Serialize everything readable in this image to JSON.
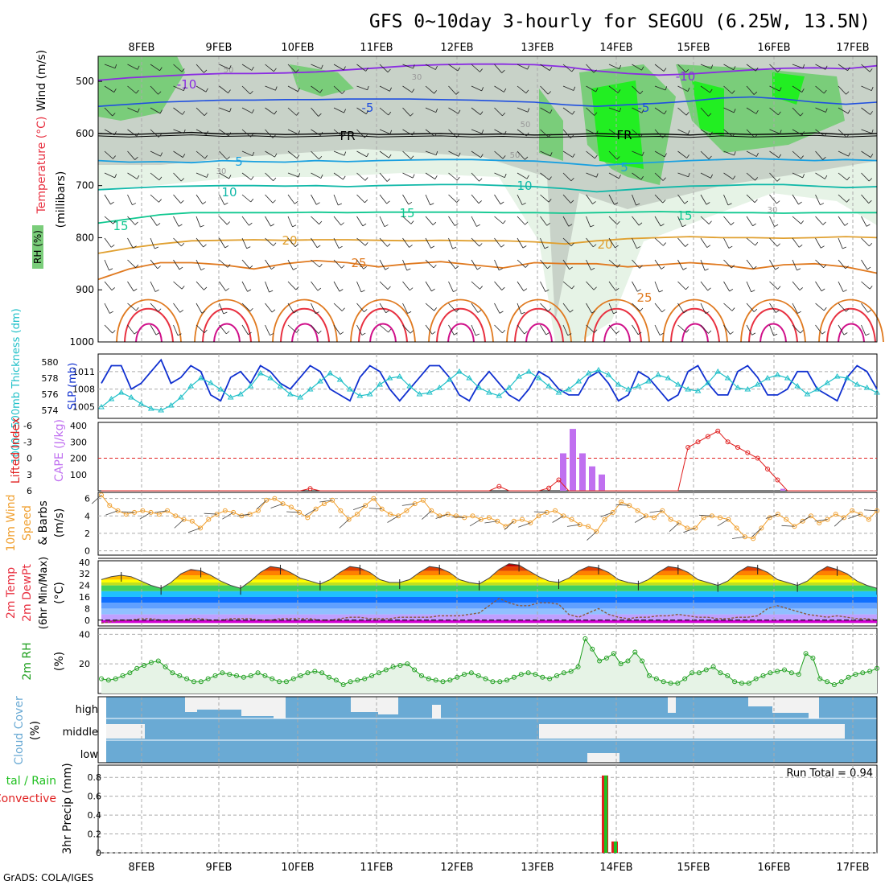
{
  "title": "GFS 0~10day 3-hourly for SEGOU (6.25W, 13.5N)",
  "credit": "GrADS: COLA/IGES",
  "colors": {
    "rh_light": "#e6f3e6",
    "rh_mid": "#c8d2c8",
    "rh_green": "#7acd7a",
    "rh_bright": "#22ee22",
    "temp_purple": "#8a2be2",
    "temp_blue": "#1f4fe0",
    "temp_cyan": "#1aa0e0",
    "temp_teal": "#10b8a8",
    "temp_green": "#10c890",
    "temp_orange": "#e0a030",
    "temp_orange2": "#e07a20",
    "temp_red": "#e83040",
    "temp_magenta": "#d0108a",
    "slp": "#1030d0",
    "thickness": "#20c0c8",
    "lifted": "#e02020",
    "cape": "#c070f0",
    "wind10": "#f0a030",
    "rh2m": "#20a020",
    "cloud": "#6aaad4",
    "rain": "#20c020",
    "convective": "#e02020"
  },
  "chart_data": [
    {
      "type": "heatmap",
      "panel": "upper-air",
      "x_ticks": [
        "8FEB",
        "9FEB",
        "10FEB",
        "11FEB",
        "12FEB",
        "13FEB",
        "14FEB",
        "15FEB",
        "16FEB",
        "17FEB"
      ],
      "ylabel": "(millibars)",
      "ylabels": [
        "Wind (m/s)",
        "Temperature (°C)",
        "RH (%)"
      ],
      "y_ticks": [
        500,
        600,
        700,
        800,
        900,
        1000
      ],
      "temperature_contours": [
        {
          "label": "-10",
          "level_mb": [
            498,
            493,
            490,
            487,
            485,
            485,
            484,
            482,
            478,
            474,
            470,
            468,
            467,
            467,
            468,
            472,
            480,
            485,
            488,
            486,
            482,
            478,
            475,
            474,
            476,
            470
          ]
        },
        {
          "label": "-5",
          "level_mb": [
            548,
            544,
            540,
            538,
            536,
            536,
            535,
            535,
            534,
            534,
            534,
            535,
            536,
            538,
            540,
            545,
            548,
            545,
            542,
            538,
            532,
            530,
            534,
            540,
            544,
            540
          ]
        },
        {
          "label": "FR",
          "level_mb": [
            600,
            602,
            600,
            598,
            601,
            600,
            602,
            601,
            599,
            602,
            601,
            600,
            602,
            601,
            603,
            602,
            600,
            602,
            601,
            603,
            600,
            602,
            601,
            599,
            602,
            600
          ]
        },
        {
          "label": "5",
          "level_mb": [
            652,
            655,
            654,
            656,
            652,
            654,
            655,
            652,
            654,
            652,
            651,
            650,
            650,
            652,
            653,
            657,
            662,
            658,
            655,
            652,
            650,
            648,
            650,
            652,
            650,
            652
          ]
        },
        {
          "label": "10",
          "level_mb": [
            708,
            705,
            702,
            701,
            700,
            700,
            701,
            700,
            702,
            700,
            699,
            698,
            698,
            700,
            702,
            706,
            712,
            708,
            704,
            701,
            700,
            698,
            698,
            701,
            704,
            702
          ]
        },
        {
          "label": "15",
          "level_mb": [
            772,
            764,
            756,
            752,
            752,
            752,
            752,
            751,
            752,
            751,
            751,
            751,
            751,
            752,
            752,
            753,
            752,
            751,
            750,
            751,
            752,
            752,
            753,
            752,
            752,
            752
          ]
        },
        {
          "label": "20",
          "level_mb": [
            830,
            820,
            812,
            806,
            805,
            804,
            805,
            804,
            804,
            805,
            806,
            805,
            806,
            806,
            808,
            812,
            806,
            802,
            800,
            798,
            800,
            800,
            801,
            800,
            798,
            800
          ]
        },
        {
          "label": "25",
          "level_mb": [
            880,
            860,
            848,
            848,
            852,
            860,
            850,
            844,
            848,
            856,
            850,
            846,
            852,
            858,
            848,
            850,
            850,
            856,
            852,
            848,
            852,
            860,
            852,
            850,
            856,
            868
          ]
        }
      ],
      "contour_labels": [
        "-10",
        "-10",
        "-5",
        "-5",
        "FR",
        "FR",
        "5",
        "5",
        "10",
        "10",
        "15",
        "15",
        "15",
        "20",
        "20",
        "25",
        "25",
        "-10",
        "30",
        "50",
        "50",
        "50",
        "30",
        "30"
      ]
    },
    {
      "type": "line",
      "panel": "slp-thickness",
      "ylabel_left": "1000~500mb Thickness (dm)",
      "ylabel_right": "SLP (mb)",
      "y_ticks_left": [
        574,
        576,
        578,
        580
      ],
      "y_ticks_right": [
        1005,
        1008,
        1011
      ],
      "series": [
        {
          "name": "SLP (mb)",
          "values": [
            1009,
            1012,
            1012,
            1008,
            1009,
            1011,
            1013,
            1009,
            1010,
            1012,
            1011,
            1007,
            1006,
            1010,
            1011,
            1009,
            1012,
            1011,
            1009,
            1008,
            1010,
            1012,
            1011,
            1008,
            1007,
            1006,
            1010,
            1012,
            1011,
            1008,
            1006,
            1008,
            1010,
            1012,
            1012,
            1010,
            1007,
            1006,
            1009,
            1011,
            1009,
            1007,
            1006,
            1008,
            1011,
            1010,
            1008,
            1007,
            1007,
            1010,
            1011,
            1009,
            1006,
            1007,
            1011,
            1010,
            1008,
            1006,
            1007,
            1011,
            1012,
            1009,
            1007,
            1007,
            1011,
            1012,
            1010,
            1007,
            1007,
            1008,
            1011,
            1011,
            1008,
            1007,
            1006,
            1010,
            1012,
            1011,
            1008
          ]
        },
        {
          "name": "1000~500mb Thickness (dm)",
          "values": [
            574.4,
            575.4,
            576.2,
            575.6,
            574.8,
            574.2,
            574.0,
            574.6,
            575.6,
            577.0,
            578.0,
            577.4,
            576.6,
            575.6,
            576.0,
            577.0,
            578.6,
            578.0,
            577.0,
            576.0,
            575.6,
            576.6,
            577.6,
            578.6,
            577.8,
            576.6,
            575.8,
            576.0,
            577.2,
            578.0,
            578.2,
            577.0,
            576.0,
            576.2,
            576.8,
            577.8,
            578.8,
            578.0,
            576.8,
            576.2,
            575.8,
            576.8,
            578.2,
            578.8,
            578.0,
            577.0,
            576.2,
            576.6,
            577.6,
            578.6,
            579.0,
            578.4,
            577.2,
            576.6,
            577.0,
            577.6,
            578.4,
            578.0,
            577.2,
            576.6,
            576.4,
            577.4,
            578.8,
            578.0,
            576.8,
            576.6,
            577.2,
            578.0,
            578.4,
            578.0,
            577.0,
            576.0,
            576.6,
            577.4,
            578.2,
            578.0,
            577.2,
            576.8,
            576.2
          ]
        }
      ]
    },
    {
      "type": "bar",
      "panel": "cape-lifted",
      "ylabel_left": "Lifted Index",
      "ylabel_right": "CAPE (J/kg)",
      "y_ticks_li": [
        6,
        3,
        0,
        -3,
        -6
      ],
      "y_ticks_cape": [
        100,
        200,
        300,
        400
      ],
      "cape_values": {
        "13FEB+12h": 230,
        "13FEB+15h": 380,
        "13FEB+18h": 230,
        "13FEB+21h": 150,
        "14FEB+0h": 100,
        "16FEB+3h": 5
      },
      "lifted_index_series": [
        {
          "name": "Lifted Index",
          "values": [
            6,
            6,
            6,
            6,
            6,
            6,
            6,
            6,
            6,
            6,
            6,
            6,
            6,
            6,
            6,
            6,
            6,
            6,
            6,
            6,
            6,
            5.6,
            6,
            6,
            6,
            6,
            6,
            6,
            6,
            6,
            6,
            6,
            6,
            6,
            6,
            6,
            6,
            6,
            6,
            6,
            5.2,
            6,
            6,
            6,
            6,
            5.5,
            4,
            6,
            6,
            6,
            6,
            6,
            6,
            6,
            6,
            6,
            6,
            6,
            6,
            -2,
            -3,
            -4,
            -5,
            -3,
            -2,
            -1,
            0,
            2,
            4,
            6,
            6,
            6,
            6,
            6,
            6,
            6,
            6,
            6,
            6
          ]
        }
      ]
    },
    {
      "type": "line",
      "panel": "wind10m",
      "ylabel": "10m Wind Speed & Barbs (m/s)",
      "y_ticks": [
        0,
        2,
        4,
        6
      ],
      "series": [
        {
          "name": "10m Wind Speed",
          "values": [
            6.4,
            5.2,
            4.6,
            4.2,
            4.4,
            4.6,
            4.4,
            4.2,
            4.6,
            4.0,
            3.6,
            3.4,
            2.6,
            3.6,
            4.2,
            4.6,
            4.4,
            4.0,
            4.2,
            4.6,
            5.8,
            6.0,
            5.4,
            5.0,
            4.4,
            3.8,
            4.8,
            5.4,
            5.8,
            4.6,
            3.6,
            4.2,
            5.2,
            6.0,
            4.8,
            4.2,
            4.0,
            4.6,
            5.4,
            5.8,
            4.6,
            4.0,
            4.2,
            4.0,
            3.8,
            4.0,
            3.6,
            3.8,
            3.4,
            2.8,
            3.4,
            3.6,
            3.2,
            4.0,
            4.4,
            4.6,
            4.0,
            3.6,
            3.0,
            2.8,
            2.2,
            3.6,
            4.4,
            5.6,
            5.2,
            4.6,
            4.0,
            3.8,
            4.6,
            3.6,
            3.2,
            2.6,
            2.6,
            3.8,
            4.0,
            3.8,
            3.6,
            2.6,
            1.6,
            1.4,
            2.6,
            3.8,
            4.2,
            3.6,
            2.8,
            3.4,
            4.0,
            3.2,
            3.6,
            4.2,
            3.8,
            4.6,
            4.2,
            3.6,
            4.6
          ]
        }
      ]
    },
    {
      "type": "area",
      "panel": "temp2m",
      "ylabel": "2m Temp 2m DewPt (6hr Min/Max) (°C)",
      "y_ticks": [
        0,
        8,
        16,
        24,
        32,
        40
      ],
      "series": [
        {
          "name": "2m Temp",
          "values": [
            28,
            30,
            31,
            30,
            27,
            24,
            22,
            26,
            32,
            35,
            34,
            31,
            27,
            24,
            22,
            27,
            33,
            37,
            36,
            33,
            29,
            27,
            25,
            28,
            33,
            37,
            36,
            33,
            28,
            26,
            26,
            28,
            33,
            37,
            36,
            33,
            28,
            26,
            25,
            29,
            35,
            39,
            38,
            34,
            30,
            27,
            26,
            29,
            34,
            37,
            36,
            33,
            28,
            26,
            25,
            28,
            33,
            37,
            36,
            33,
            28,
            26,
            24,
            27,
            33,
            37,
            36,
            33,
            28,
            26,
            24,
            27,
            33,
            37,
            35,
            32,
            27,
            24,
            22
          ]
        },
        {
          "name": "2m DewPt",
          "values": [
            -2,
            -1,
            0,
            0,
            1,
            1,
            0,
            0,
            0,
            1,
            1,
            0,
            0,
            1,
            1,
            1,
            0,
            0,
            1,
            1,
            1,
            1,
            0,
            0,
            1,
            2,
            2,
            1,
            1,
            1,
            2,
            2,
            2,
            2,
            3,
            3,
            3,
            4,
            5,
            10,
            15,
            12,
            10,
            10,
            12,
            12,
            11,
            4,
            2,
            5,
            8,
            4,
            2,
            1,
            2,
            2,
            3,
            3,
            4,
            3,
            2,
            2,
            1,
            1,
            2,
            2,
            3,
            8,
            10,
            8,
            6,
            4,
            3,
            2,
            3,
            2,
            1,
            1,
            0
          ]
        }
      ]
    },
    {
      "type": "area",
      "panel": "rh2m",
      "ylabel": "2m RH (%)",
      "y_ticks": [
        20,
        40
      ],
      "series": [
        {
          "name": "2m RH",
          "values": [
            10,
            9,
            10,
            12,
            14,
            17,
            19,
            21,
            22,
            18,
            14,
            12,
            10,
            8,
            8,
            10,
            12,
            14,
            13,
            12,
            11,
            12,
            14,
            12,
            10,
            8,
            8,
            10,
            12,
            14,
            15,
            14,
            11,
            9,
            6,
            8,
            9,
            10,
            12,
            14,
            16,
            18,
            19,
            20,
            16,
            12,
            10,
            9,
            8,
            9,
            11,
            13,
            14,
            12,
            10,
            8,
            8,
            9,
            11,
            13,
            14,
            13,
            11,
            10,
            12,
            14,
            15,
            18,
            37,
            30,
            22,
            24,
            27,
            20,
            22,
            28,
            22,
            12,
            10,
            8,
            7,
            7,
            10,
            14,
            14,
            16,
            18,
            14,
            12,
            8,
            7,
            7,
            10,
            12,
            14,
            15,
            16,
            14,
            13,
            27,
            24,
            10,
            8,
            6,
            8,
            11,
            13,
            14,
            15,
            17
          ]
        }
      ]
    },
    {
      "type": "area",
      "panel": "cloud",
      "ylabel": "Cloud Cover (%)",
      "y_ticks": [
        "high",
        "middle",
        "low"
      ]
    },
    {
      "type": "bar",
      "panel": "precip",
      "ylabel_left": "Total / Rain Convective",
      "ylabel_right": "3hr Precip (mm)",
      "y_ticks": [
        0,
        0.2,
        0.4,
        0.6,
        0.8
      ],
      "annotation": "Run Total = 0.94",
      "series": [
        {
          "name": "Total / Rain",
          "values": {
            "13FEB+21h": 0.82,
            "14FEB+0h": 0.12
          }
        },
        {
          "name": "Convective",
          "values": {
            "13FEB+21h": 0.82,
            "14FEB+0h": 0.12
          }
        }
      ]
    }
  ]
}
